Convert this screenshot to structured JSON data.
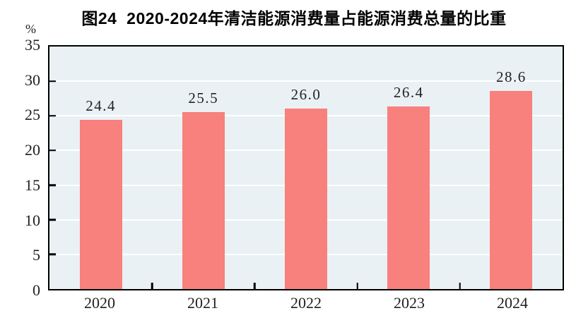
{
  "figure": {
    "title": "图24  2020-2024年清洁能源消费量占能源消费总量的比重",
    "unit_label": "%"
  },
  "chart_data": {
    "type": "bar",
    "title": "图24  2020-2024年清洁能源消费量占能源消费总量的比重",
    "unit": "%",
    "categories": [
      "2020",
      "2021",
      "2022",
      "2023",
      "2024"
    ],
    "values": [
      24.4,
      25.5,
      26.0,
      26.4,
      28.6
    ],
    "value_labels": [
      "24.4",
      "25.5",
      "26.0",
      "26.4",
      "28.6"
    ],
    "xlabel": "",
    "ylabel": "%",
    "ylim": [
      0,
      35
    ],
    "yticks": [
      0,
      5,
      10,
      15,
      20,
      25,
      30,
      35
    ],
    "grid": true,
    "legend": "none",
    "colors": {
      "bar": "#f8807d",
      "plot_background": "#e9f1f4",
      "gridline": "#ffffff",
      "axis": "#000000",
      "text": "#1f1f1f"
    }
  }
}
